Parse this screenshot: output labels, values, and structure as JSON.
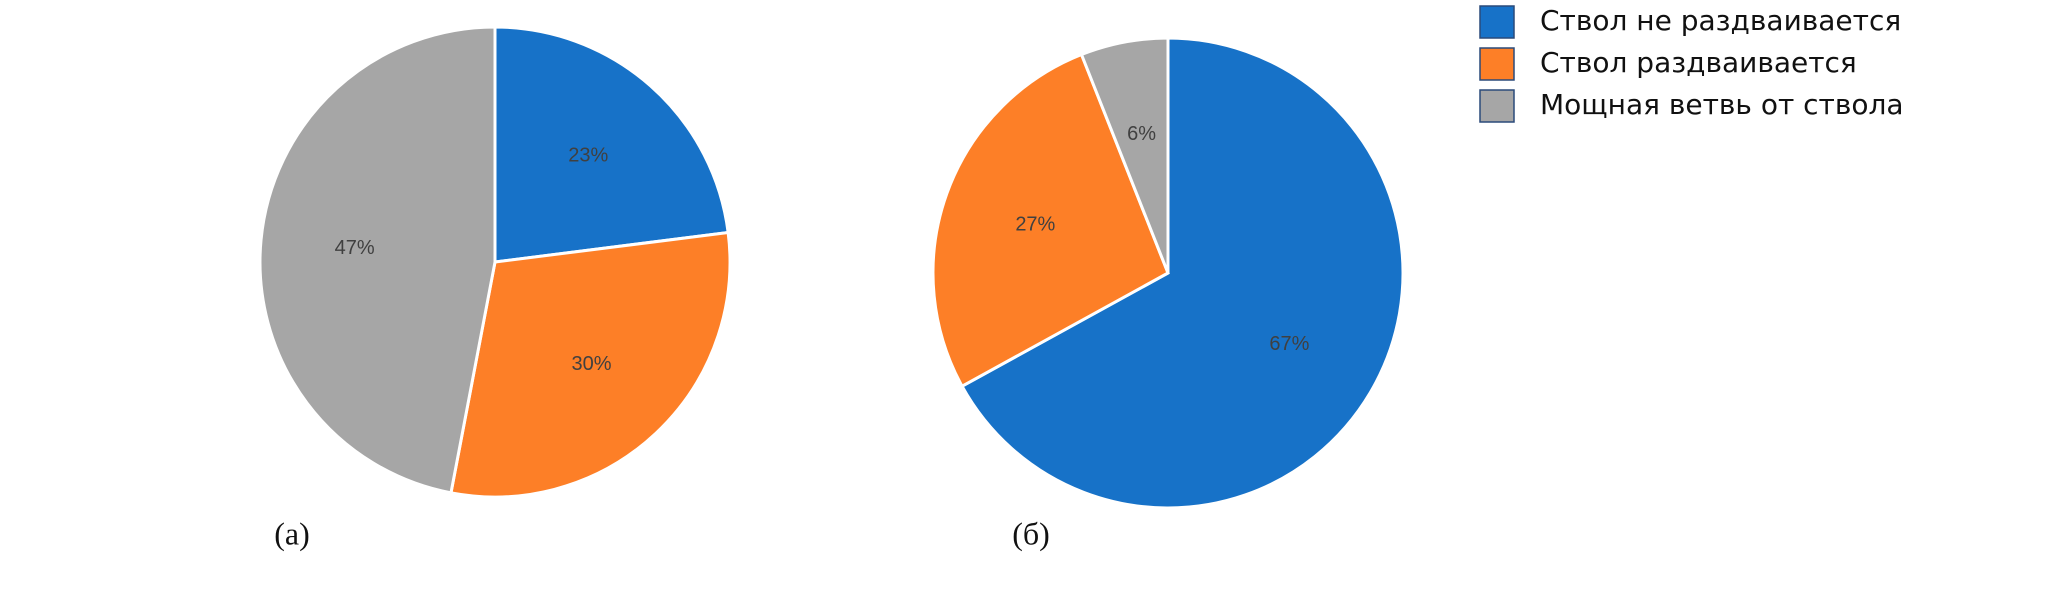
{
  "legend": {
    "names": [
      "Ствол не раздваивается",
      "Ствол  раздваивается",
      "Мощная ветвь от ствола"
    ],
    "colors": [
      "#1772c8",
      "#fd7f27",
      "#a6a6a6"
    ]
  },
  "chart_data": [
    {
      "type": "pie",
      "label": "(а)",
      "values": [
        23,
        30,
        47
      ],
      "value_labels": [
        "23%",
        "30%",
        "47%"
      ]
    },
    {
      "type": "pie",
      "label": "(б)",
      "values": [
        67,
        27,
        6
      ],
      "value_labels": [
        "67%",
        "27%",
        "6%"
      ]
    }
  ]
}
